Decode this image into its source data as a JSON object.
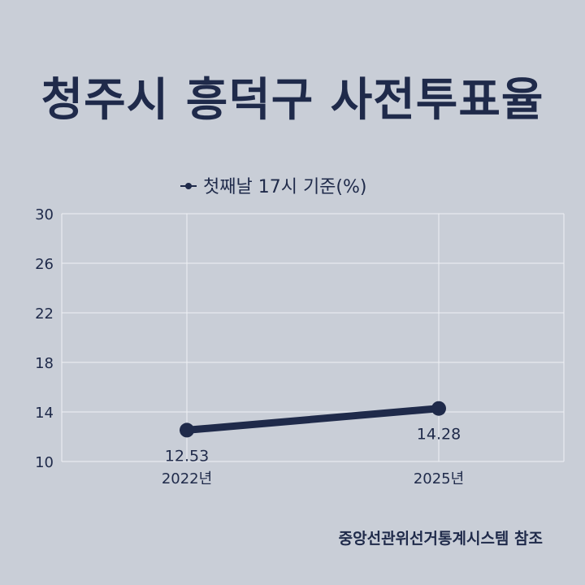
{
  "title": "청주시 흥덕구 사전투표율",
  "source": "중앙선관위선거통계시스템 참조",
  "colors": {
    "background": "#c9ced7",
    "series": "#1f2a4a",
    "grid": "#eef0f4"
  },
  "chart_data": {
    "type": "line",
    "categories": [
      "2022년",
      "2025년"
    ],
    "series": [
      {
        "name": "첫째날 17시 기준(%)",
        "values": [
          12.53,
          14.28
        ],
        "labels": [
          "12.53",
          "14.28"
        ]
      }
    ],
    "ylim": [
      10,
      30
    ],
    "yticks": [
      10,
      14,
      18,
      22,
      26,
      30
    ],
    "legend": "top-center",
    "grid": true
  }
}
